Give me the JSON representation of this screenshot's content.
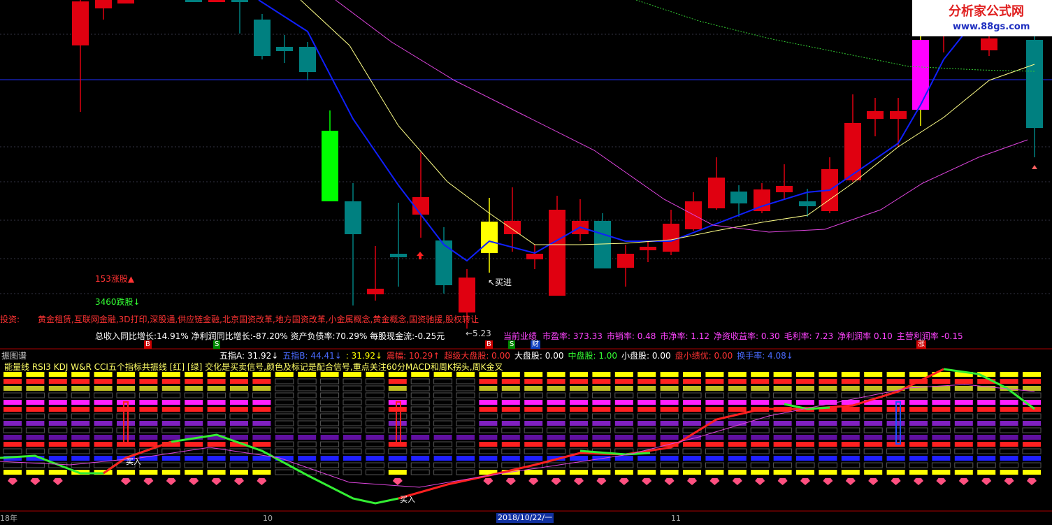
{
  "top": {
    "up_count": "153涨股▲",
    "down_count": "3460跌股↓",
    "concept_label": "投资:",
    "concepts": "黄金租赁,互联网金融,3D打印,深股通,供应链金融,北京国资改革,地方国资改革,小金属概念,黄金概念,国资驰援,股权转让",
    "finance": "总收入同比增长:14.91%  净利润同比增长:-87.20%  资产负债率:70.29%  每股现金流:-0.25元",
    "buy_note": "↖买进",
    "low_note": "←5.23",
    "perf_label": "当前业绩",
    "ratios": [
      "市盈率: 373.33",
      "市销率: 0.48",
      "市净率: 1.12",
      "净资收益率: 0.30",
      "毛利率: 7.23",
      "净利润率 0.10",
      "主营利润率 -0.15"
    ],
    "markers": [
      "B",
      "S",
      "B",
      "S",
      "财",
      "涨"
    ]
  },
  "logo": {
    "name": "分析家公式网",
    "url": "www.88gs.com"
  },
  "bottom": {
    "title": "振图谱",
    "fields": [
      {
        "text": "五指A: 31.92↓",
        "color": "#ffffff"
      },
      {
        "text": "五指B: 44.41↓",
        "color": "#4a6bff"
      },
      {
        "text": ": 31.92↓",
        "color": "#ffff00"
      },
      {
        "text": "震幅: 10.29↑",
        "color": "#ff3333"
      },
      {
        "text": "超级大盘股: 0.00",
        "color": "#ff3333"
      },
      {
        "text": "大盘股: 0.00",
        "color": "#ffffff"
      },
      {
        "text": "中盘股: 1.00",
        "color": "#33ff33"
      },
      {
        "text": "小盘股: 0.00",
        "color": "#ffffff"
      },
      {
        "text": "盘小绩优: 0.00",
        "color": "#ff3333"
      },
      {
        "text": "换手率: 4.08↓",
        "color": "#4a6bff"
      }
    ],
    "description": "能量线 RSI3 KDJ W&R CCI五个指标共振线 [红] [绿] 交化是买卖信号,颜色及标记是配合信号,重点关注60分MACD和周K拐头,周K金叉",
    "buy_labels": [
      "买入",
      "买入"
    ]
  },
  "axis": [
    "18年",
    "10",
    "2018/10/22/一",
    "11"
  ]
}
